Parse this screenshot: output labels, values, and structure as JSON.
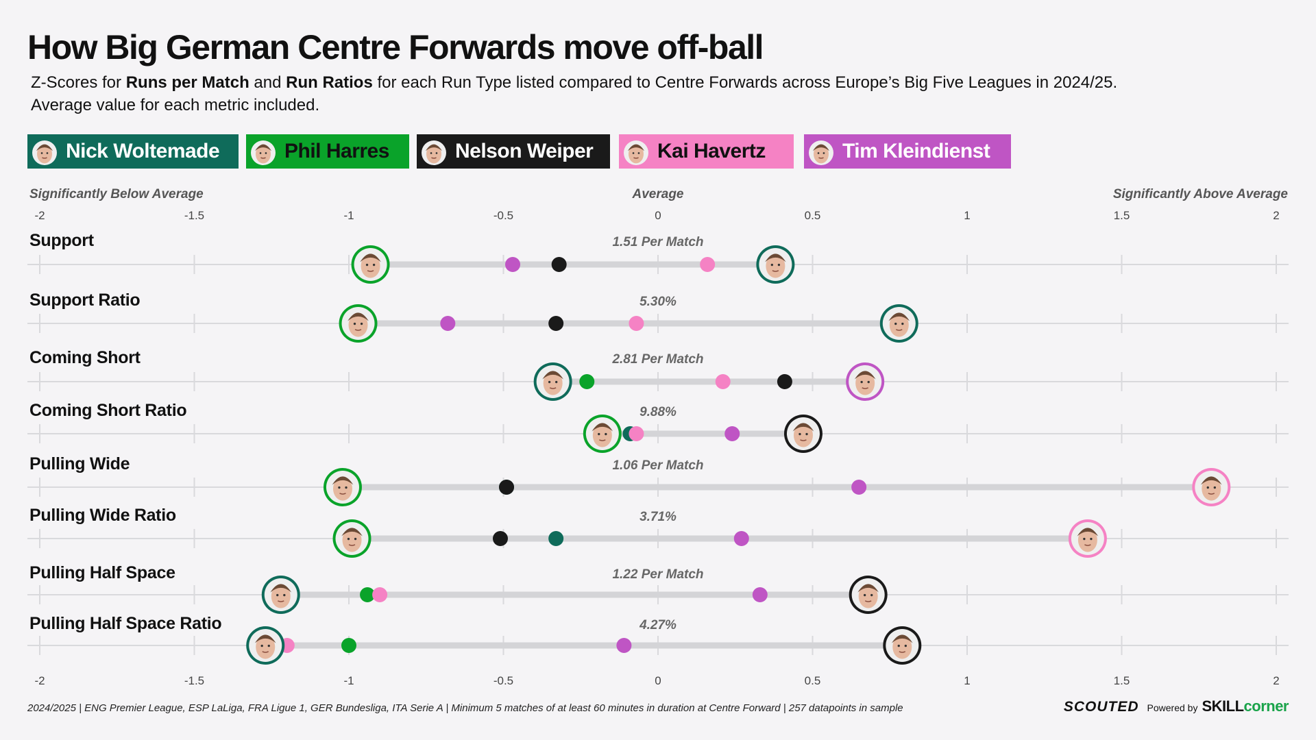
{
  "title": "How Big German Centre Forwards move off-ball",
  "subtitle": {
    "part1": "Z-Scores for ",
    "bold1": "Runs per Match",
    "part2": " and ",
    "bold2": "Run Ratios",
    "part3": " for each Run Type listed compared to Centre Forwards across Europe’s Big Five Leagues in 2024/25.",
    "line2": "Average value for each metric included."
  },
  "colors": {
    "background": "#f5f4f6",
    "gridline": "#d9d9dc",
    "range_bar": "#d4d4d7"
  },
  "legend": [
    {
      "name": "Nick Woltemade",
      "color": "#0f6b5a",
      "text_color": "#ffffff",
      "icon": "player-face-icon"
    },
    {
      "name": "Phil Harres",
      "color": "#0aa32a",
      "text_color": "#111111",
      "icon": "player-face-icon"
    },
    {
      "name": "Nelson Weiper",
      "color": "#1a1a1a",
      "text_color": "#ffffff",
      "icon": "player-face-icon"
    },
    {
      "name": "Kai Havertz",
      "color": "#f582c4",
      "text_color": "#111111",
      "icon": "player-face-icon"
    },
    {
      "name": "Tim Kleindienst",
      "color": "#bf55c4",
      "text_color": "#ffffff",
      "icon": "player-face-icon"
    }
  ],
  "axis_annotations": {
    "left": "Significantly Below Average",
    "center": "Average",
    "right": "Significantly Above Average"
  },
  "footnote": "2024/2025 | ENG Premier League, ESP LaLiga, FRA Ligue 1, GER Bundesliga, ITA Serie A | Minimum 5 matches of at least 60 minutes in duration at Centre Forward | 257 datapoints in sample",
  "brand": {
    "scouted": "SCOUTED",
    "powered": "Powered by",
    "skill": "SKILL",
    "corner": "corner"
  },
  "chart_data": {
    "type": "scatter",
    "subtype": "dumbbell",
    "xlim": [
      -2,
      2
    ],
    "xticks": [
      -2,
      -1.5,
      -1,
      -0.5,
      0,
      0.5,
      1,
      1.5,
      2
    ],
    "tick_labels": [
      "-2",
      "-1.5",
      "-1",
      "-0.5",
      "0",
      "0.5",
      "1",
      "1.5",
      "2"
    ],
    "grid": true,
    "players": [
      "Nick Woltemade",
      "Phil Harres",
      "Nelson Weiper",
      "Kai Havertz",
      "Tim Kleindienst"
    ],
    "metrics": [
      {
        "label": "Support",
        "average": "1.51 Per Match",
        "values": {
          "Nick Woltemade": 0.38,
          "Phil Harres": -0.93,
          "Nelson Weiper": -0.32,
          "Kai Havertz": 0.16,
          "Tim Kleindienst": -0.47
        }
      },
      {
        "label": "Support Ratio",
        "average": "5.30%",
        "values": {
          "Nick Woltemade": 0.78,
          "Phil Harres": -0.97,
          "Nelson Weiper": -0.33,
          "Kai Havertz": -0.07,
          "Tim Kleindienst": -0.68
        }
      },
      {
        "label": "Coming Short",
        "average": "2.81 Per Match",
        "values": {
          "Nick Woltemade": -0.34,
          "Phil Harres": -0.23,
          "Nelson Weiper": 0.41,
          "Kai Havertz": 0.21,
          "Tim Kleindienst": 0.67
        }
      },
      {
        "label": "Coming Short Ratio",
        "average": "9.88%",
        "values": {
          "Nick Woltemade": -0.09,
          "Phil Harres": -0.18,
          "Nelson Weiper": 0.47,
          "Kai Havertz": -0.07,
          "Tim Kleindienst": 0.24
        }
      },
      {
        "label": "Pulling Wide",
        "average": "1.06 Per Match",
        "values": {
          "Nick Woltemade": -0.49,
          "Phil Harres": -1.02,
          "Nelson Weiper": -0.49,
          "Kai Havertz": 1.79,
          "Tim Kleindienst": 0.65
        }
      },
      {
        "label": "Pulling Wide Ratio",
        "average": "3.71%",
        "values": {
          "Nick Woltemade": -0.33,
          "Phil Harres": -0.99,
          "Nelson Weiper": -0.51,
          "Kai Havertz": 1.39,
          "Tim Kleindienst": 0.27
        }
      },
      {
        "label": "Pulling Half Space",
        "average": "1.22 Per Match",
        "values": {
          "Nick Woltemade": -1.22,
          "Phil Harres": -0.94,
          "Nelson Weiper": 0.68,
          "Kai Havertz": -0.9,
          "Tim Kleindienst": 0.33
        }
      },
      {
        "label": "Pulling Half Space Ratio",
        "average": "4.27%",
        "values": {
          "Nick Woltemade": -1.27,
          "Phil Harres": -1.0,
          "Nelson Weiper": 0.79,
          "Kai Havertz": -1.2,
          "Tim Kleindienst": -0.11
        }
      }
    ]
  }
}
